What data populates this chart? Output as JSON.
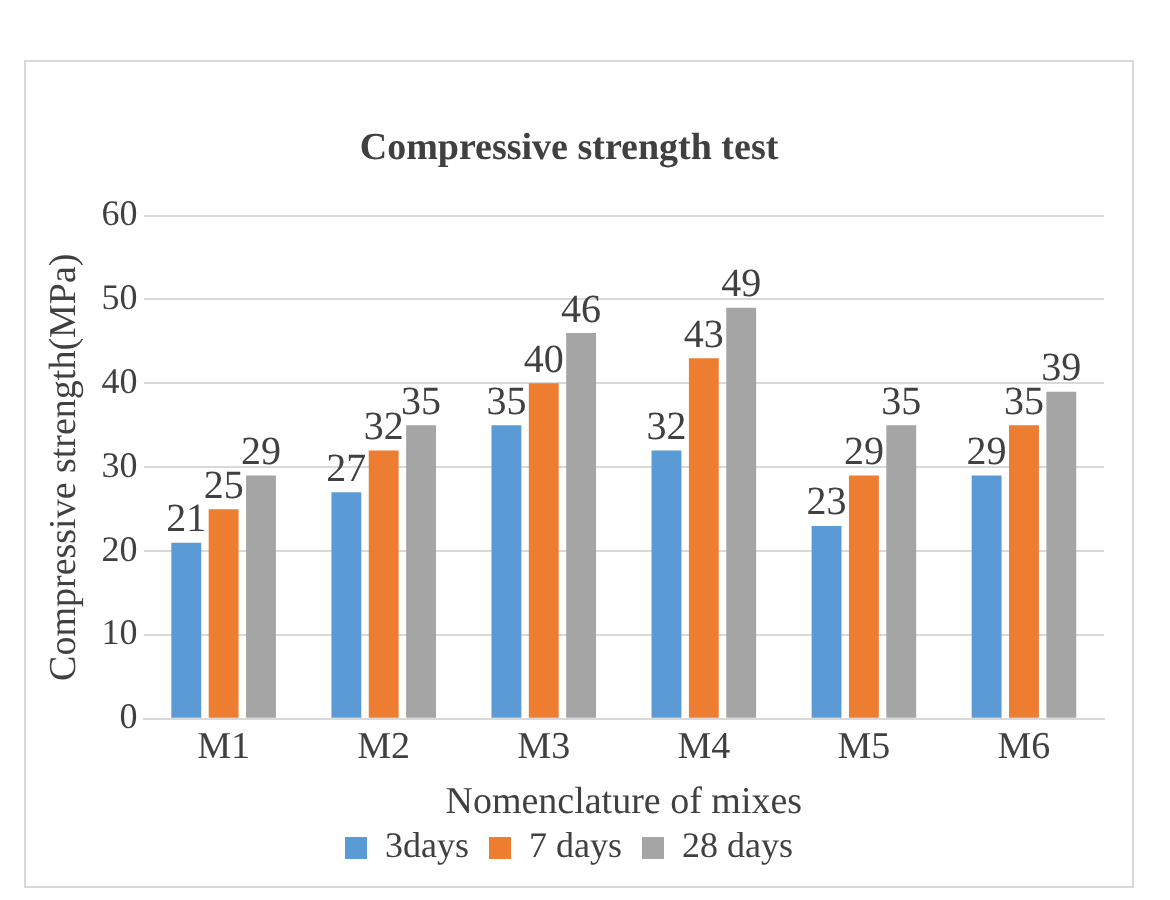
{
  "chart_data": {
    "type": "bar",
    "title": "Compressive strength test",
    "xlabel": "Nomenclature of mixes",
    "ylabel": "Compressive strength(MPa)",
    "categories": [
      "M1",
      "M2",
      "M3",
      "M4",
      "M5",
      "M6"
    ],
    "series": [
      {
        "name": "3days",
        "color": "#5b9bd5",
        "values": [
          21,
          27,
          35,
          32,
          23,
          29
        ]
      },
      {
        "name": "7 days",
        "color": "#ed7d31",
        "values": [
          25,
          32,
          40,
          43,
          29,
          35
        ]
      },
      {
        "name": "28 days",
        "color": "#a5a5a5",
        "values": [
          29,
          35,
          46,
          49,
          35,
          39
        ]
      }
    ],
    "ylim": [
      0,
      60
    ],
    "yticks": [
      0,
      10,
      20,
      30,
      40,
      50,
      60
    ],
    "grid": "y",
    "legend": "bottom",
    "data_labels": true
  }
}
